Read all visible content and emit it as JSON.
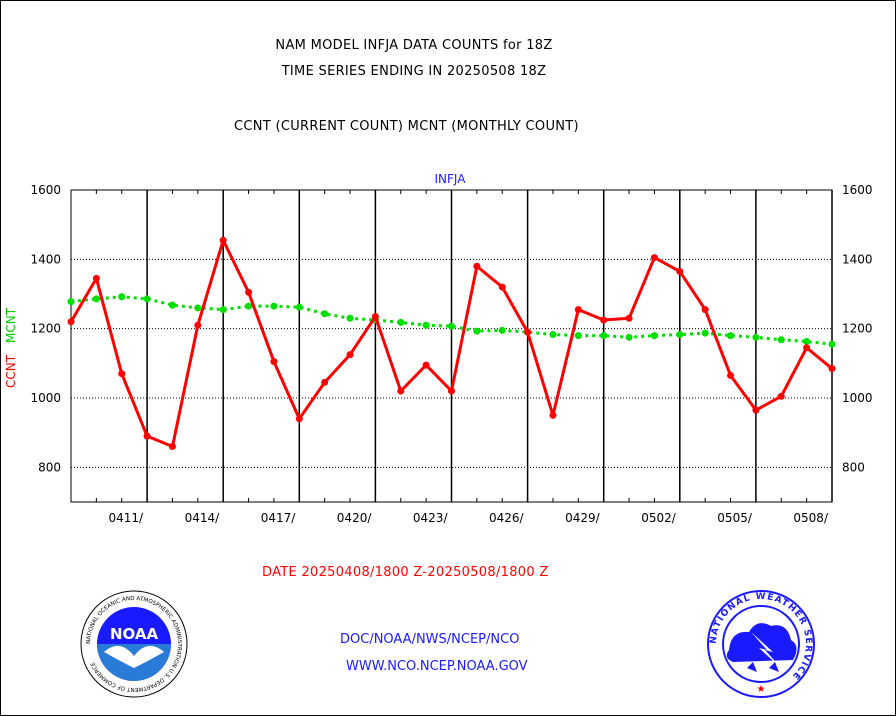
{
  "title_line1": "NAM MODEL INFJA DATA COUNTS for 18Z",
  "title_line2": "TIME SERIES ENDING IN 20250508 18Z",
  "subtitle": "CCNT (CURRENT COUNT) MCNT (MONTHLY COUNT)",
  "station": "INFJA",
  "y_axis_label_ccnt": "CCNT",
  "y_axis_label_mcnt": "MCNT",
  "date_range": "DATE 20250408/1800 Z-20250508/1800 Z",
  "org_line": "DOC/NOAA/NWS/NCEP/NCO",
  "web_line": "WWW.NCO.NCEP.NOAA.GOV",
  "logos": {
    "left": {
      "name": "noaa-logo",
      "text": "NOAA",
      "ring_text": "NATIONAL OCEANIC AND ATMOSPHERIC ADMINISTRATION U.S. DEPARTMENT OF COMMERCE"
    },
    "right": {
      "name": "nws-logo",
      "ring_text": "NATIONAL WEATHER SERVICE"
    }
  },
  "colors": {
    "ccnt": "#ff0000",
    "mcnt": "#00e000",
    "title": "#000000",
    "link": "#1a1aff",
    "grid": "#000000"
  },
  "chart_data": {
    "type": "line",
    "title": "NAM MODEL INFJA DATA COUNTS for 18Z",
    "x_tick_labels": [
      "0411/",
      "0414/",
      "0417/",
      "0420/",
      "0423/",
      "0426/",
      "0429/",
      "0502/",
      "0505/",
      "0508/"
    ],
    "x_tick_days": [
      3,
      6,
      9,
      12,
      15,
      18,
      21,
      24,
      27,
      30
    ],
    "x": [
      0,
      1,
      2,
      3,
      4,
      5,
      6,
      7,
      8,
      9,
      10,
      11,
      12,
      13,
      14,
      15,
      16,
      17,
      18,
      19,
      20,
      21,
      22,
      23,
      24,
      25,
      26,
      27,
      28,
      29,
      30
    ],
    "ylim": [
      700,
      1600
    ],
    "y_ticks": [
      800,
      1000,
      1200,
      1400,
      1600
    ],
    "grid": true,
    "series": [
      {
        "name": "CCNT",
        "values": [
          1220,
          1345,
          1070,
          890,
          860,
          1210,
          1455,
          1305,
          1105,
          940,
          1045,
          1125,
          1235,
          1020,
          1095,
          1020,
          1380,
          1320,
          1190,
          950,
          1255,
          1225,
          1230,
          1405,
          1365,
          1255,
          1065,
          965,
          1005,
          1145,
          1085
        ]
      },
      {
        "name": "MCNT",
        "values": [
          1278,
          1286,
          1292,
          1286,
          1268,
          1260,
          1255,
          1265,
          1265,
          1262,
          1243,
          1230,
          1225,
          1218,
          1210,
          1207,
          1193,
          1195,
          1190,
          1183,
          1180,
          1180,
          1175,
          1180,
          1183,
          1187,
          1180,
          1175,
          1168,
          1163,
          1155
        ]
      }
    ]
  }
}
